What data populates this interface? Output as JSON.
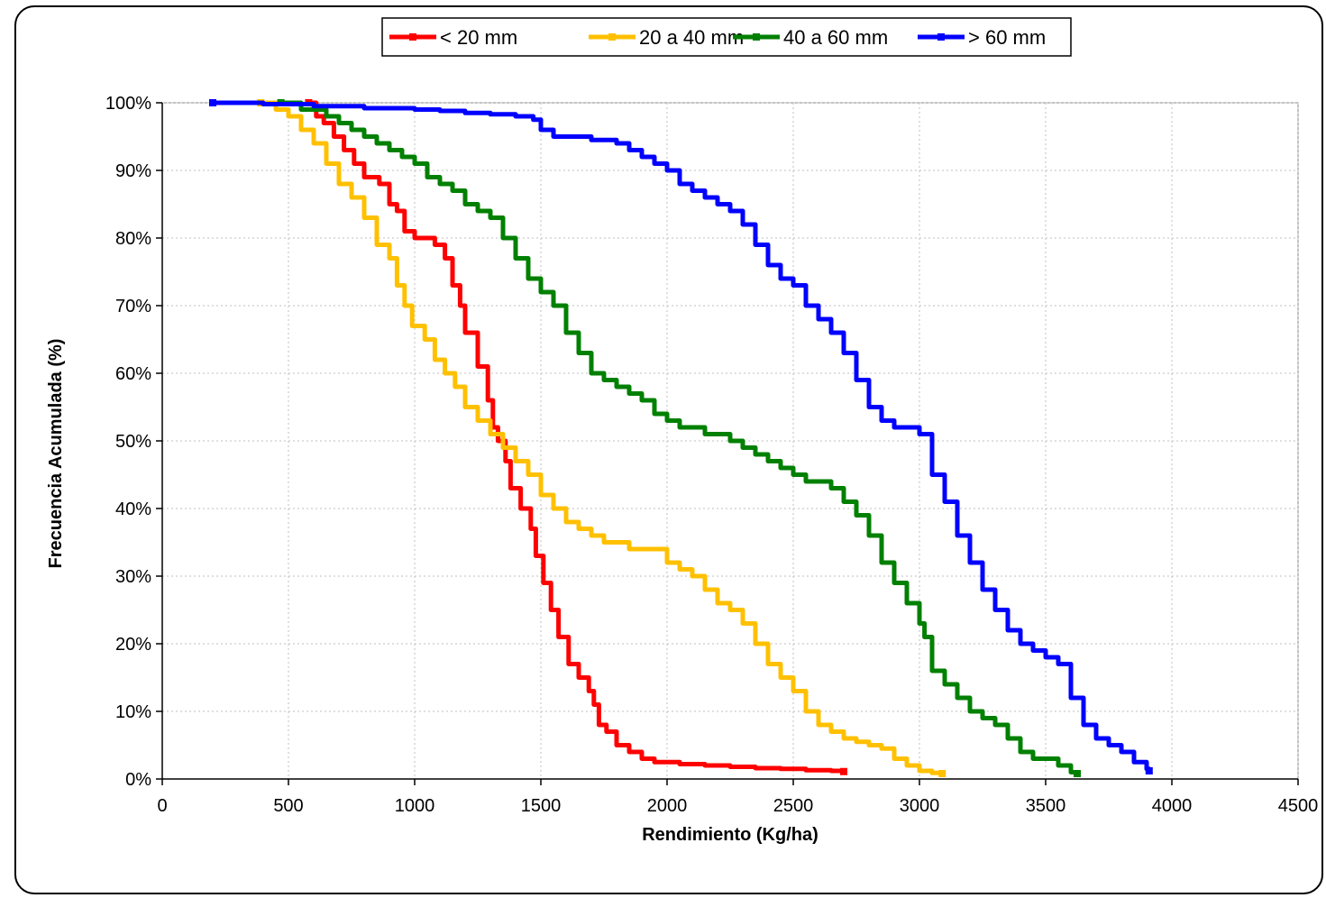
{
  "chart_data": {
    "type": "line",
    "title": "",
    "xlabel": "Rendimiento (Kg/ha)",
    "ylabel": "Frecuencia Acumulada (%)",
    "xlim": [
      0,
      4500
    ],
    "ylim": [
      0,
      100
    ],
    "x_ticks": [
      "0",
      "500",
      "1000",
      "1500",
      "2000",
      "2500",
      "3000",
      "3500",
      "4000",
      "4500"
    ],
    "y_ticks": [
      "0%",
      "10%",
      "20%",
      "30%",
      "40%",
      "50%",
      "60%",
      "70%",
      "80%",
      "90%",
      "100%"
    ],
    "x_tick_values": [
      0,
      500,
      1000,
      1500,
      2000,
      2500,
      3000,
      3500,
      4000,
      4500
    ],
    "y_tick_values": [
      0,
      10,
      20,
      30,
      40,
      50,
      60,
      70,
      80,
      90,
      100
    ],
    "grid": true,
    "legend_position": "top-center",
    "series": [
      {
        "name": "< 20 mm",
        "color": "#ff0000",
        "points": [
          [
            580,
            100
          ],
          [
            610,
            98
          ],
          [
            640,
            97
          ],
          [
            680,
            95
          ],
          [
            720,
            93
          ],
          [
            760,
            91
          ],
          [
            800,
            89
          ],
          [
            860,
            88
          ],
          [
            900,
            85
          ],
          [
            930,
            84
          ],
          [
            960,
            81
          ],
          [
            1000,
            80
          ],
          [
            1050,
            80
          ],
          [
            1080,
            79
          ],
          [
            1120,
            77
          ],
          [
            1150,
            73
          ],
          [
            1180,
            70
          ],
          [
            1200,
            66
          ],
          [
            1250,
            61
          ],
          [
            1290,
            56
          ],
          [
            1310,
            52
          ],
          [
            1330,
            50
          ],
          [
            1360,
            47
          ],
          [
            1380,
            43
          ],
          [
            1420,
            40
          ],
          [
            1460,
            37
          ],
          [
            1480,
            33
          ],
          [
            1510,
            29
          ],
          [
            1540,
            25
          ],
          [
            1570,
            21
          ],
          [
            1610,
            17
          ],
          [
            1650,
            15
          ],
          [
            1690,
            13
          ],
          [
            1710,
            11
          ],
          [
            1730,
            8
          ],
          [
            1760,
            7
          ],
          [
            1800,
            5
          ],
          [
            1850,
            4
          ],
          [
            1900,
            3
          ],
          [
            1950,
            2.5
          ],
          [
            2050,
            2.2
          ],
          [
            2150,
            2
          ],
          [
            2250,
            1.8
          ],
          [
            2350,
            1.6
          ],
          [
            2450,
            1.5
          ],
          [
            2550,
            1.3
          ],
          [
            2650,
            1.2
          ],
          [
            2700,
            1.1
          ]
        ]
      },
      {
        "name": "20 a 40 mm",
        "color": "#ffc000",
        "points": [
          [
            390,
            100
          ],
          [
            450,
            99
          ],
          [
            500,
            98
          ],
          [
            550,
            96
          ],
          [
            600,
            94
          ],
          [
            650,
            91
          ],
          [
            700,
            88
          ],
          [
            750,
            86
          ],
          [
            800,
            83
          ],
          [
            850,
            79
          ],
          [
            900,
            77
          ],
          [
            930,
            73
          ],
          [
            960,
            70
          ],
          [
            990,
            67
          ],
          [
            1040,
            65
          ],
          [
            1080,
            62
          ],
          [
            1120,
            60
          ],
          [
            1160,
            58
          ],
          [
            1200,
            55
          ],
          [
            1250,
            53
          ],
          [
            1300,
            51
          ],
          [
            1350,
            49
          ],
          [
            1400,
            47
          ],
          [
            1450,
            45
          ],
          [
            1500,
            42
          ],
          [
            1550,
            40
          ],
          [
            1600,
            38
          ],
          [
            1650,
            37
          ],
          [
            1700,
            36
          ],
          [
            1750,
            35
          ],
          [
            1800,
            35
          ],
          [
            1850,
            34
          ],
          [
            1900,
            34
          ],
          [
            1950,
            34
          ],
          [
            2000,
            32
          ],
          [
            2050,
            31
          ],
          [
            2100,
            30
          ],
          [
            2150,
            28
          ],
          [
            2200,
            26
          ],
          [
            2250,
            25
          ],
          [
            2300,
            23
          ],
          [
            2350,
            20
          ],
          [
            2400,
            17
          ],
          [
            2450,
            15
          ],
          [
            2500,
            13
          ],
          [
            2550,
            10
          ],
          [
            2600,
            8
          ],
          [
            2650,
            7
          ],
          [
            2700,
            6
          ],
          [
            2750,
            5.5
          ],
          [
            2800,
            5
          ],
          [
            2850,
            4.5
          ],
          [
            2900,
            3
          ],
          [
            2950,
            2
          ],
          [
            3000,
            1.2
          ],
          [
            3050,
            0.9
          ],
          [
            3090,
            0.8
          ]
        ]
      },
      {
        "name": "40 a 60 mm",
        "color": "#008000",
        "points": [
          [
            470,
            100
          ],
          [
            550,
            99
          ],
          [
            600,
            99
          ],
          [
            650,
            98
          ],
          [
            700,
            97
          ],
          [
            750,
            96
          ],
          [
            800,
            95
          ],
          [
            850,
            94
          ],
          [
            900,
            93
          ],
          [
            950,
            92
          ],
          [
            1000,
            91
          ],
          [
            1050,
            89
          ],
          [
            1100,
            88
          ],
          [
            1150,
            87
          ],
          [
            1200,
            85
          ],
          [
            1250,
            84
          ],
          [
            1300,
            83
          ],
          [
            1350,
            80
          ],
          [
            1400,
            77
          ],
          [
            1450,
            74
          ],
          [
            1500,
            72
          ],
          [
            1550,
            70
          ],
          [
            1600,
            66
          ],
          [
            1650,
            63
          ],
          [
            1700,
            60
          ],
          [
            1750,
            59
          ],
          [
            1800,
            58
          ],
          [
            1850,
            57
          ],
          [
            1900,
            56
          ],
          [
            1950,
            54
          ],
          [
            2000,
            53
          ],
          [
            2050,
            52
          ],
          [
            2100,
            52
          ],
          [
            2150,
            51
          ],
          [
            2200,
            51
          ],
          [
            2250,
            50
          ],
          [
            2300,
            49
          ],
          [
            2350,
            48
          ],
          [
            2400,
            47
          ],
          [
            2450,
            46
          ],
          [
            2500,
            45
          ],
          [
            2550,
            44
          ],
          [
            2600,
            44
          ],
          [
            2650,
            43
          ],
          [
            2700,
            41
          ],
          [
            2750,
            39
          ],
          [
            2800,
            36
          ],
          [
            2850,
            32
          ],
          [
            2900,
            29
          ],
          [
            2950,
            26
          ],
          [
            3000,
            23
          ],
          [
            3020,
            21
          ],
          [
            3050,
            16
          ],
          [
            3100,
            14
          ],
          [
            3150,
            12
          ],
          [
            3200,
            10
          ],
          [
            3250,
            9
          ],
          [
            3300,
            8
          ],
          [
            3350,
            6
          ],
          [
            3400,
            4
          ],
          [
            3450,
            3
          ],
          [
            3500,
            3
          ],
          [
            3550,
            2
          ],
          [
            3600,
            1
          ],
          [
            3625,
            0.8
          ]
        ]
      },
      {
        "name": "> 60 mm",
        "color": "#0000ff",
        "points": [
          [
            200,
            100
          ],
          [
            400,
            99.8
          ],
          [
            600,
            99.5
          ],
          [
            800,
            99.2
          ],
          [
            1000,
            99
          ],
          [
            1100,
            98.8
          ],
          [
            1200,
            98.5
          ],
          [
            1300,
            98.3
          ],
          [
            1400,
            98
          ],
          [
            1470,
            97.5
          ],
          [
            1500,
            96
          ],
          [
            1550,
            95
          ],
          [
            1600,
            95
          ],
          [
            1650,
            95
          ],
          [
            1700,
            94.5
          ],
          [
            1800,
            94
          ],
          [
            1850,
            93
          ],
          [
            1900,
            92
          ],
          [
            1950,
            91
          ],
          [
            2000,
            90
          ],
          [
            2050,
            88
          ],
          [
            2100,
            87
          ],
          [
            2150,
            86
          ],
          [
            2200,
            85
          ],
          [
            2250,
            84
          ],
          [
            2300,
            82
          ],
          [
            2350,
            79
          ],
          [
            2400,
            76
          ],
          [
            2450,
            74
          ],
          [
            2500,
            73
          ],
          [
            2550,
            70
          ],
          [
            2600,
            68
          ],
          [
            2650,
            66
          ],
          [
            2700,
            63
          ],
          [
            2750,
            59
          ],
          [
            2800,
            55
          ],
          [
            2850,
            53
          ],
          [
            2900,
            52
          ],
          [
            2950,
            52
          ],
          [
            3000,
            51
          ],
          [
            3050,
            45
          ],
          [
            3100,
            41
          ],
          [
            3150,
            36
          ],
          [
            3200,
            32
          ],
          [
            3250,
            28
          ],
          [
            3300,
            25
          ],
          [
            3350,
            22
          ],
          [
            3400,
            20
          ],
          [
            3450,
            19
          ],
          [
            3500,
            18
          ],
          [
            3550,
            17
          ],
          [
            3600,
            12
          ],
          [
            3650,
            8
          ],
          [
            3700,
            6
          ],
          [
            3750,
            5
          ],
          [
            3800,
            4
          ],
          [
            3850,
            2.5
          ],
          [
            3900,
            1.5
          ],
          [
            3910,
            1.2
          ]
        ]
      }
    ]
  }
}
